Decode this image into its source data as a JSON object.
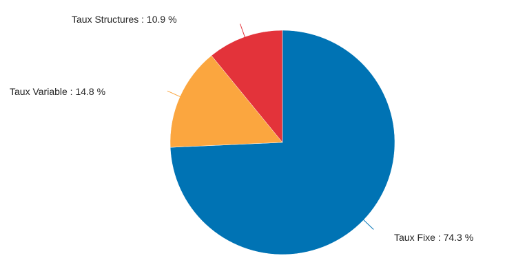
{
  "chart_data": {
    "type": "pie",
    "title": "",
    "slices": [
      {
        "label": "Taux Fixe",
        "value": 74.3,
        "display": "Taux Fixe : 74.3 %",
        "color": "#0073b4"
      },
      {
        "label": "Taux Variable",
        "value": 14.8,
        "display": "Taux Variable : 14.8 %",
        "color": "#fba63f"
      },
      {
        "label": "Taux Structures",
        "value": 10.9,
        "display": "Taux Structures : 10.9 %",
        "color": "#e3333a"
      }
    ],
    "start_angle_deg": 0,
    "direction": "clockwise",
    "legend": "none",
    "label_style": "outside-with-connector-lines"
  }
}
